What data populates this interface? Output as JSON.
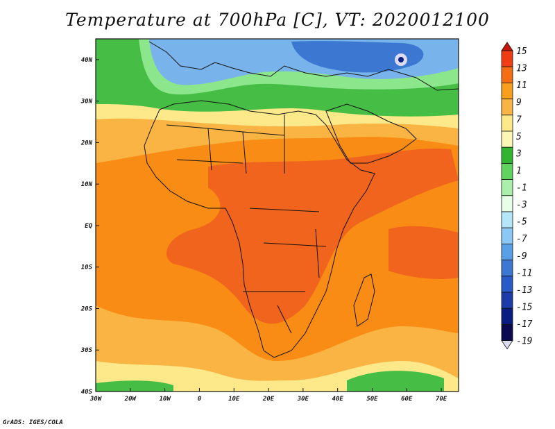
{
  "title": "Temperature at 700hPa [C], VT: 2020012100",
  "credit": "GrADS: IGES/COLA",
  "map": {
    "lon_range": [
      -30,
      75
    ],
    "lat_range": [
      -40,
      45
    ],
    "lon_ticks": [
      "30W",
      "20W",
      "10W",
      "0",
      "10E",
      "20E",
      "30E",
      "40E",
      "50E",
      "60E",
      "70E"
    ],
    "lat_ticks": [
      "40N",
      "30N",
      "20N",
      "10N",
      "EQ",
      "10S",
      "20S",
      "30S",
      "40S"
    ]
  },
  "colorbar": {
    "labels": [
      "15",
      "13",
      "11",
      "9",
      "7",
      "5",
      "3",
      "1",
      "-1",
      "-3",
      "-5",
      "-7",
      "-9",
      "-11",
      "-13",
      "-15",
      "-17",
      "-19"
    ],
    "colors": [
      "#c8160c",
      "#f03c14",
      "#f66e14",
      "#f8a01e",
      "#fab443",
      "#fde88a",
      "#fdf7b6",
      "#32b432",
      "#5fd25f",
      "#aaf0aa",
      "#e6ffe6",
      "#b4e6fa",
      "#8cc8f5",
      "#5aa0e6",
      "#3c78d2",
      "#285ac8",
      "#1e3ca8",
      "#0a1e82",
      "#0a0a50",
      "#dcdcf0"
    ]
  },
  "field_colors": {
    "very_warm": "#f0641e",
    "warm": "#f88c14",
    "mid": "#fab443",
    "cool": "#fde88a",
    "pale": "#fdf7b6",
    "green": "#46be46",
    "light_green": "#8ce68c",
    "cold_blue": "#78b4eb",
    "cold_deep": "#3c78d2"
  }
}
